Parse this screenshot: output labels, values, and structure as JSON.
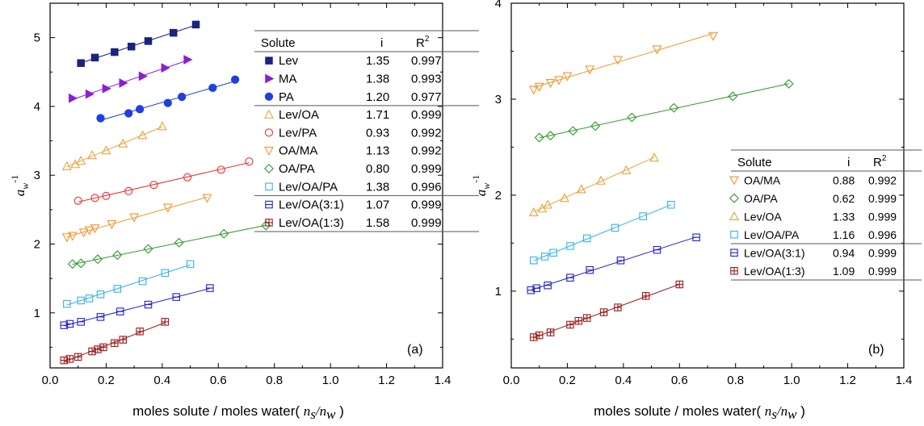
{
  "chart_data": [
    {
      "type": "scatter",
      "panel_label": "(a)",
      "xlabel": "moles solute / moles water(",
      "xlabel_math": "n_s/n_w",
      "xlabel_close": ")",
      "ylabel": "a_w^-1",
      "xlim": [
        0.0,
        1.4
      ],
      "ylim": [
        0.2,
        5.5
      ],
      "xticks": [
        "0.0",
        "0.2",
        "0.4",
        "0.6",
        "0.8",
        "1.0",
        "1.2",
        "1.4"
      ],
      "yticks": [
        "1",
        "2",
        "3",
        "4",
        "5"
      ],
      "legend_headers": [
        "Solute",
        "i",
        "R2"
      ],
      "series": [
        {
          "name": "Lev",
          "i": "1.35",
          "r2": "0.997",
          "marker": "square-filled",
          "color": "#1a237e",
          "x": [
            0.11,
            0.16,
            0.23,
            0.29,
            0.35,
            0.44,
            0.52
          ],
          "y": [
            4.63,
            4.71,
            4.79,
            4.87,
            4.95,
            5.07,
            5.19
          ]
        },
        {
          "name": "MA",
          "i": "1.38",
          "r2": "0.993",
          "marker": "triangle-right-filled",
          "color": "#8b1fd8",
          "x": [
            0.08,
            0.14,
            0.2,
            0.26,
            0.33,
            0.41,
            0.49
          ],
          "y": [
            4.12,
            4.18,
            4.26,
            4.34,
            4.44,
            4.56,
            4.68
          ]
        },
        {
          "name": "PA",
          "i": "1.20",
          "r2": "0.977",
          "marker": "circle-filled",
          "color": "#1f3fe0",
          "x": [
            0.18,
            0.28,
            0.32,
            0.42,
            0.47,
            0.58,
            0.66
          ],
          "y": [
            3.83,
            3.9,
            3.96,
            4.05,
            4.14,
            4.27,
            4.39
          ]
        },
        {
          "name": "Lev/OA",
          "i": "1.71",
          "r2": "0.999",
          "marker": "triangle-up-open",
          "color": "#e8a33c",
          "x": [
            0.06,
            0.09,
            0.11,
            0.15,
            0.2,
            0.26,
            0.33,
            0.4
          ],
          "y": [
            3.13,
            3.16,
            3.21,
            3.29,
            3.36,
            3.46,
            3.58,
            3.71
          ]
        },
        {
          "name": "Lev/PA",
          "i": "0.93",
          "r2": "0.992",
          "marker": "circle-open",
          "color": "#e83030",
          "x": [
            0.1,
            0.16,
            0.2,
            0.28,
            0.37,
            0.49,
            0.61,
            0.71
          ],
          "y": [
            2.63,
            2.67,
            2.7,
            2.77,
            2.86,
            2.97,
            3.08,
            3.2
          ]
        },
        {
          "name": "OA/MA",
          "i": "1.13",
          "r2": "0.992",
          "marker": "triangle-down-open",
          "color": "#f0952e",
          "x": [
            0.06,
            0.08,
            0.12,
            0.14,
            0.16,
            0.22,
            0.3,
            0.42,
            0.56
          ],
          "y": [
            2.1,
            2.12,
            2.17,
            2.2,
            2.23,
            2.29,
            2.39,
            2.53,
            2.67
          ]
        },
        {
          "name": "OA/PA",
          "i": "0.80",
          "r2": "0.999",
          "marker": "diamond-open",
          "color": "#2e9a2e",
          "x": [
            0.08,
            0.11,
            0.17,
            0.24,
            0.35,
            0.46,
            0.62,
            0.77
          ],
          "y": [
            1.71,
            1.72,
            1.78,
            1.84,
            1.93,
            2.02,
            2.15,
            2.27
          ]
        },
        {
          "name": "Lev/OA/PA",
          "i": "1.38",
          "r2": "0.996",
          "marker": "square-open",
          "color": "#33b2e8",
          "x": [
            0.06,
            0.11,
            0.14,
            0.18,
            0.24,
            0.33,
            0.41,
            0.5
          ],
          "y": [
            1.13,
            1.18,
            1.21,
            1.27,
            1.35,
            1.46,
            1.58,
            1.71
          ]
        },
        {
          "name": "Lev/OA(3:1)",
          "i": "1.07",
          "r2": "0.999",
          "marker": "square-hline",
          "color": "#2020d0",
          "x": [
            0.05,
            0.07,
            0.11,
            0.18,
            0.25,
            0.35,
            0.45,
            0.57
          ],
          "y": [
            0.82,
            0.84,
            0.87,
            0.94,
            1.02,
            1.12,
            1.23,
            1.36
          ]
        },
        {
          "name": "Lev/OA(1:3)",
          "i": "1.58",
          "r2": "0.999",
          "marker": "square-cross",
          "color": "#9b1c1c",
          "x": [
            0.05,
            0.07,
            0.1,
            0.15,
            0.17,
            0.19,
            0.23,
            0.26,
            0.32,
            0.41
          ],
          "y": [
            0.31,
            0.33,
            0.36,
            0.44,
            0.47,
            0.5,
            0.56,
            0.61,
            0.73,
            0.87
          ]
        }
      ]
    },
    {
      "type": "scatter",
      "panel_label": "(b)",
      "xlabel": "moles solute / moles water(",
      "xlabel_math": "n_s/n_w",
      "xlabel_close": ")",
      "ylabel": "a_w^-1",
      "xlim": [
        0.0,
        1.4
      ],
      "ylim": [
        0.2,
        4.0
      ],
      "xticks": [
        "0.0",
        "0.2",
        "0.4",
        "0.6",
        "0.8",
        "1.0",
        "1.2",
        "1.4"
      ],
      "yticks": [
        "1",
        "2",
        "3",
        "4"
      ],
      "legend_headers": [
        "Solute",
        "i",
        "R2"
      ],
      "series": [
        {
          "name": "OA/MA",
          "i": "0.88",
          "r2": "0.992",
          "marker": "triangle-down-open",
          "color": "#f0952e",
          "x": [
            0.08,
            0.1,
            0.14,
            0.17,
            0.2,
            0.28,
            0.38,
            0.52,
            0.72
          ],
          "y": [
            3.1,
            3.13,
            3.17,
            3.2,
            3.24,
            3.31,
            3.41,
            3.52,
            3.66
          ]
        },
        {
          "name": "OA/PA",
          "i": "0.62",
          "r2": "0.999",
          "marker": "diamond-open",
          "color": "#2e9a2e",
          "x": [
            0.1,
            0.14,
            0.22,
            0.3,
            0.43,
            0.58,
            0.79,
            0.99
          ],
          "y": [
            2.6,
            2.62,
            2.67,
            2.72,
            2.81,
            2.91,
            3.03,
            3.16
          ]
        },
        {
          "name": "Lev/OA",
          "i": "1.33",
          "r2": "0.999",
          "marker": "triangle-up-open",
          "color": "#e8a33c",
          "x": [
            0.08,
            0.11,
            0.13,
            0.19,
            0.25,
            0.32,
            0.41,
            0.51
          ],
          "y": [
            1.82,
            1.86,
            1.9,
            1.97,
            2.06,
            2.15,
            2.26,
            2.39
          ]
        },
        {
          "name": "Lev/OA/PA",
          "i": "1.16",
          "r2": "0.996",
          "marker": "square-open",
          "color": "#33b2e8",
          "x": [
            0.08,
            0.12,
            0.15,
            0.21,
            0.27,
            0.37,
            0.47,
            0.57
          ],
          "y": [
            1.32,
            1.36,
            1.4,
            1.47,
            1.55,
            1.66,
            1.78,
            1.9
          ]
        },
        {
          "name": "Lev/OA(3:1)",
          "i": "0.94",
          "r2": "0.999",
          "marker": "square-hline",
          "color": "#2020d0",
          "x": [
            0.07,
            0.09,
            0.13,
            0.21,
            0.28,
            0.39,
            0.52,
            0.66
          ],
          "y": [
            1.01,
            1.03,
            1.06,
            1.14,
            1.22,
            1.32,
            1.43,
            1.56
          ]
        },
        {
          "name": "Lev/OA(1:3)",
          "i": "1.09",
          "r2": "0.999",
          "marker": "square-cross",
          "color": "#9b1c1c",
          "x": [
            0.08,
            0.1,
            0.14,
            0.21,
            0.24,
            0.27,
            0.33,
            0.38,
            0.48,
            0.6
          ],
          "y": [
            0.52,
            0.54,
            0.57,
            0.65,
            0.69,
            0.72,
            0.78,
            0.83,
            0.95,
            1.07
          ]
        }
      ]
    }
  ]
}
